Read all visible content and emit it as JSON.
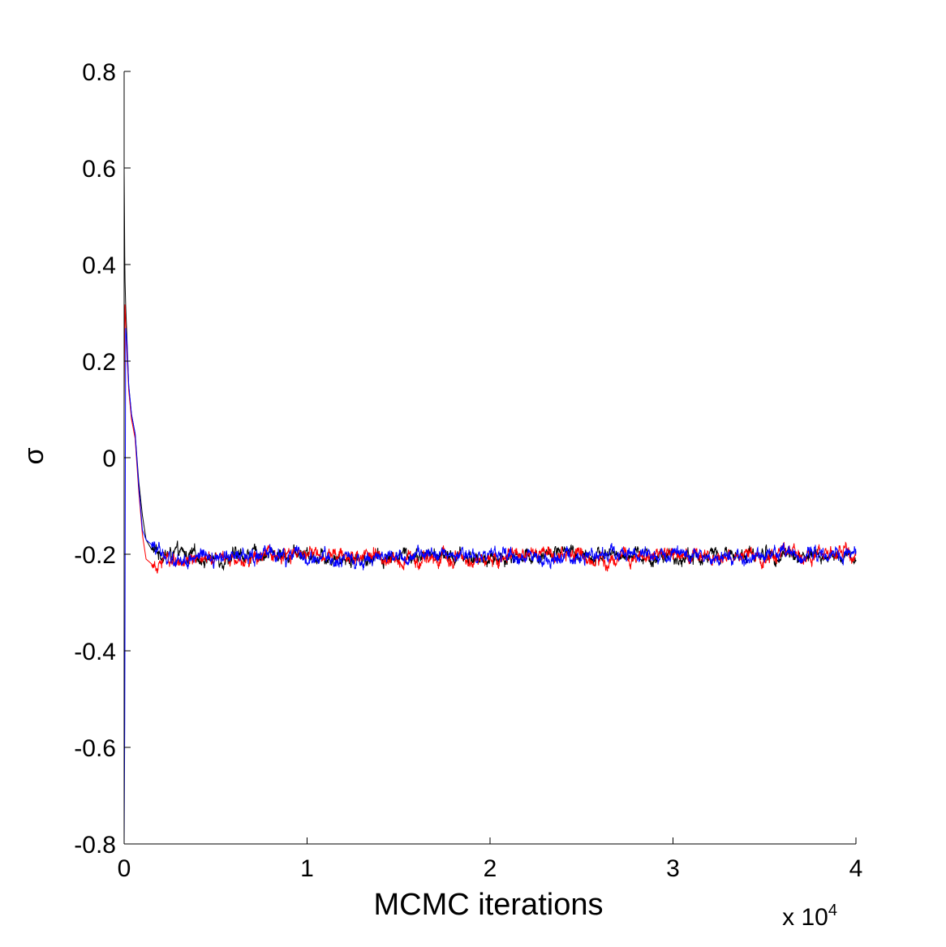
{
  "chart_data": {
    "type": "line",
    "title": "",
    "xlabel": "MCMC iterations",
    "ylabel": "σ",
    "x_multiplier_base": "x 10",
    "x_multiplier_exponent": "4",
    "xlim": [
      0,
      40000
    ],
    "ylim": [
      -0.8,
      0.8
    ],
    "xticks": [
      0,
      10000,
      20000,
      30000,
      40000
    ],
    "xtick_labels": [
      "0",
      "1",
      "2",
      "3",
      "4"
    ],
    "yticks": [
      -0.8,
      -0.6,
      -0.4,
      -0.2,
      0,
      0.2,
      0.4,
      0.6,
      0.8
    ],
    "ytick_labels": [
      "-0.8",
      "-0.6",
      "-0.4",
      "-0.2",
      "0",
      "0.2",
      "0.4",
      "0.6",
      "0.8"
    ],
    "grid": false,
    "legend": "none",
    "series": [
      {
        "color": "#000000",
        "x": [
          0,
          40,
          80,
          150,
          250,
          400,
          600,
          800,
          1000,
          1200,
          1500,
          2000,
          3000,
          5000,
          7000,
          10000,
          13000,
          16000,
          20000,
          23000,
          26000,
          30000,
          33000,
          36000,
          40000
        ],
        "y": [
          0.6,
          0.38,
          0.32,
          0.25,
          0.15,
          0.09,
          0.05,
          -0.05,
          -0.12,
          -0.17,
          -0.19,
          -0.2,
          -0.2,
          -0.21,
          -0.2,
          -0.2,
          -0.21,
          -0.2,
          -0.21,
          -0.2,
          -0.2,
          -0.21,
          -0.2,
          -0.2,
          -0.21
        ],
        "noise": 0.012
      },
      {
        "color": "#ff0000",
        "x": [
          0,
          40,
          80,
          150,
          250,
          400,
          600,
          800,
          1000,
          1200,
          1500,
          2000,
          3000,
          5000,
          7000,
          10000,
          13000,
          16000,
          20000,
          23000,
          26000,
          30000,
          33000,
          36000,
          40000
        ],
        "y": [
          0.1,
          0.33,
          0.28,
          0.22,
          0.14,
          0.08,
          0.04,
          -0.07,
          -0.16,
          -0.21,
          -0.22,
          -0.21,
          -0.21,
          -0.2,
          -0.21,
          -0.2,
          -0.2,
          -0.21,
          -0.21,
          -0.2,
          -0.21,
          -0.2,
          -0.21,
          -0.2,
          -0.2
        ],
        "noise": 0.012
      },
      {
        "color": "#0000ff",
        "x": [
          0,
          40,
          80,
          150,
          250,
          400,
          600,
          800,
          1000,
          1200,
          1500,
          2000,
          3000,
          5000,
          7000,
          10000,
          13000,
          16000,
          20000,
          23000,
          26000,
          30000,
          33000,
          36000,
          40000
        ],
        "y": [
          -0.8,
          -0.5,
          0.27,
          0.24,
          0.15,
          0.09,
          0.05,
          -0.06,
          -0.15,
          -0.17,
          -0.18,
          -0.2,
          -0.21,
          -0.21,
          -0.2,
          -0.21,
          -0.21,
          -0.2,
          -0.2,
          -0.21,
          -0.2,
          -0.2,
          -0.21,
          -0.2,
          -0.2
        ],
        "noise": 0.012
      }
    ]
  }
}
